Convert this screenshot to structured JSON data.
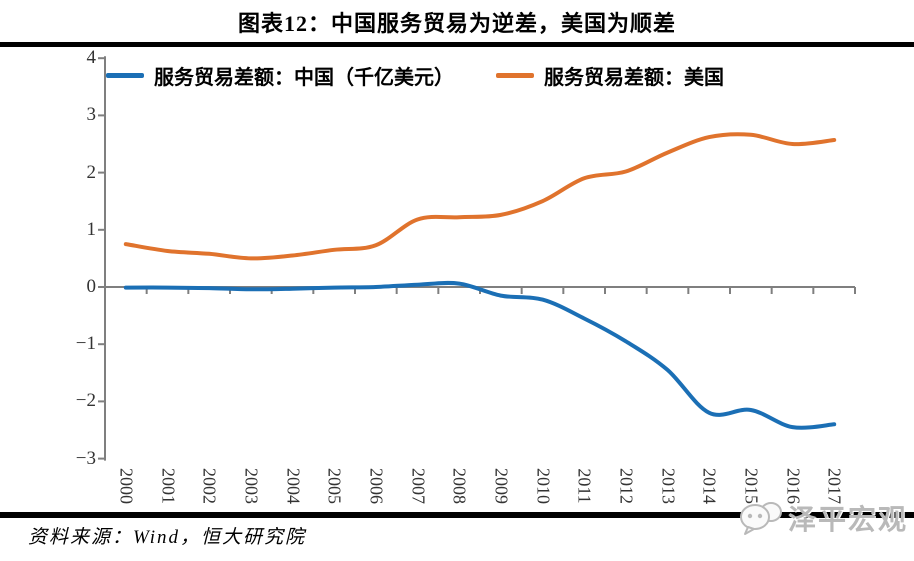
{
  "title": "图表12：中国服务贸易为逆差，美国为顺差",
  "source": "资料来源：Wind，恒大研究院",
  "watermark": "泽平宏观",
  "colors": {
    "china_line": "#1B6FB5",
    "us_line": "#E0732D",
    "axis": "#7F7F7F",
    "divider": "#000000",
    "watermark_gray": "#B9B9B9"
  },
  "chart_data": {
    "type": "line",
    "title": "图表12：中国服务贸易为逆差，美国为顺差",
    "categories": [
      "2000",
      "2001",
      "2002",
      "2003",
      "2004",
      "2005",
      "2006",
      "2007",
      "2008",
      "2009",
      "2010",
      "2011",
      "2012",
      "2013",
      "2014",
      "2015",
      "2016",
      "2017"
    ],
    "series": [
      {
        "name": "服务贸易差额：中国（千亿美元）",
        "color": "#1B6FB5",
        "values": [
          -0.01,
          -0.01,
          -0.02,
          -0.04,
          -0.03,
          -0.01,
          0.0,
          0.04,
          0.06,
          -0.15,
          -0.22,
          -0.55,
          -0.95,
          -1.45,
          -2.2,
          -2.15,
          -2.45,
          -2.4
        ]
      },
      {
        "name": "服务贸易差额：美国",
        "color": "#E0732D",
        "values": [
          0.75,
          0.63,
          0.58,
          0.5,
          0.55,
          0.65,
          0.73,
          1.18,
          1.22,
          1.26,
          1.5,
          1.9,
          2.02,
          2.35,
          2.62,
          2.66,
          2.5,
          2.57
        ]
      }
    ],
    "xlabel": "",
    "ylabel": "",
    "ylim": [
      -3,
      4
    ],
    "ytick_step": 1,
    "grid": false,
    "legend_position": "top-inside"
  }
}
